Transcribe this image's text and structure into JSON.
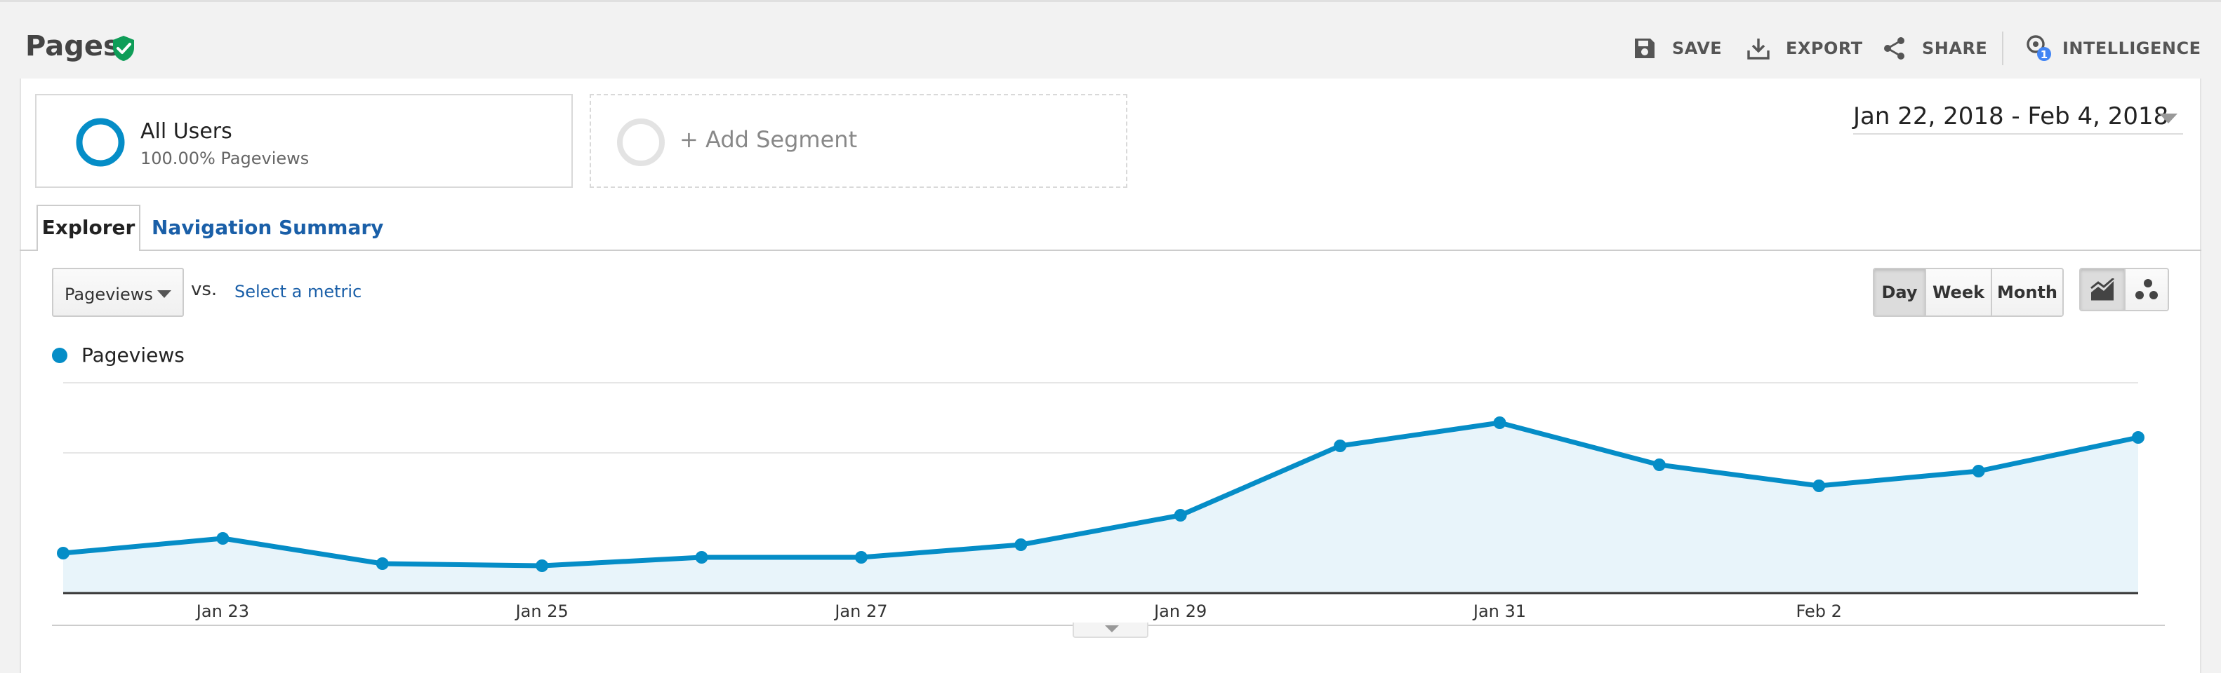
{
  "header": {
    "title": "Pages",
    "verified_icon": "shield-check-icon",
    "verified_color": "#0f9d58",
    "toolbar": [
      {
        "id": "save",
        "label": "SAVE",
        "icon": "save-icon"
      },
      {
        "id": "export",
        "label": "EXPORT",
        "icon": "export-icon"
      },
      {
        "id": "share",
        "label": "SHARE",
        "icon": "share-icon"
      },
      {
        "id": "intelligence",
        "label": "INTELLIGENCE",
        "icon": "intelligence-icon",
        "badge": "1"
      }
    ]
  },
  "segments": {
    "active": {
      "title": "All Users",
      "subtitle": "100.00% Pageviews",
      "color": "#058dc7"
    },
    "add": {
      "label": "+ Add Segment"
    }
  },
  "date_range": "Jan 22, 2018 - Feb 4, 2018",
  "tabs": [
    {
      "label": "Explorer",
      "active": true
    },
    {
      "label": "Navigation Summary",
      "active": false
    }
  ],
  "metric": {
    "selected": "Pageviews",
    "vs_label": "vs.",
    "select_metric": "Select a metric"
  },
  "granularity": {
    "options": [
      "Day",
      "Week",
      "Month"
    ],
    "selected": "Day"
  },
  "chart_view_options": [
    {
      "icon": "line-chart-icon",
      "active": true
    },
    {
      "icon": "motion-chart-icon",
      "active": false
    }
  ],
  "legend": {
    "label": "Pageviews"
  },
  "chart_data": {
    "type": "area",
    "title": "",
    "series": [
      {
        "name": "Pageviews",
        "color": "#058dc7",
        "values": [
          19,
          26,
          14,
          13,
          17,
          17,
          23,
          37,
          70,
          81,
          61,
          51,
          58,
          74
        ]
      }
    ],
    "x": [
      "Jan 22",
      "Jan 23",
      "Jan 24",
      "Jan 25",
      "Jan 26",
      "Jan 27",
      "Jan 28",
      "Jan 29",
      "Jan 30",
      "Jan 31",
      "Feb 1",
      "Feb 2",
      "Feb 3",
      "Feb 4"
    ],
    "x_tick_labels": [
      "Jan 23",
      "Jan 25",
      "Jan 27",
      "Jan 29",
      "Jan 31",
      "Feb 2"
    ],
    "ylim": [
      0,
      100
    ],
    "gridlines": 2,
    "fill_color": "#e8f4fa",
    "grid": true,
    "legend": "top-left"
  }
}
